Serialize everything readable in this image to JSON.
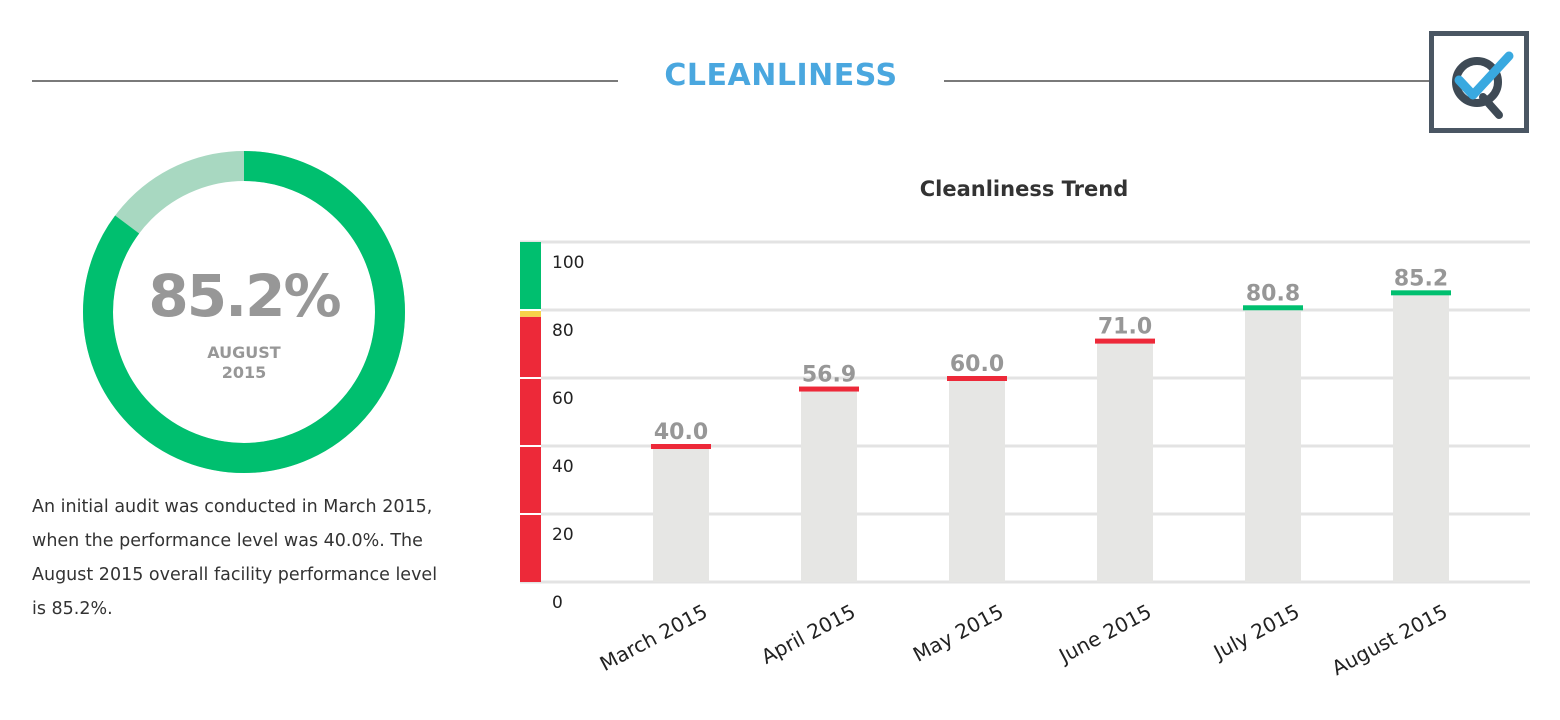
{
  "header": {
    "title": "CLEANLINESS",
    "title_color": "#4aa7df",
    "logo": "q-checkmark-logo"
  },
  "summary_gauge": {
    "value_text": "85.2%",
    "value": 85.2,
    "month": "AUGUST",
    "year": "2015",
    "fill_color": "#00bf6f",
    "track_color": "#a8d8c1"
  },
  "summary_text": "An initial audit was conducted in March 2015, when the performance level was 40.0%. The August 2015 overall facility performance level is 85.2%.",
  "chart_data": {
    "type": "bar",
    "title": "Cleanliness Trend",
    "categories": [
      "March 2015",
      "April 2015",
      "May 2015",
      "June 2015",
      "July 2015",
      "August 2015"
    ],
    "values": [
      40.0,
      56.9,
      60.0,
      71.0,
      80.8,
      85.2
    ],
    "value_labels": [
      "40.0",
      "56.9",
      "60.0",
      "71.0",
      "80.8",
      "85.2"
    ],
    "ylim": [
      0,
      100
    ],
    "yticks": [
      0,
      20,
      40,
      60,
      80,
      100
    ],
    "ytick_labels": [
      "0",
      "20",
      "40",
      "60",
      "80",
      "100"
    ],
    "grid": true,
    "bar_color": "#e6e6e4",
    "marker_colors": [
      "#ed2939",
      "#ed2939",
      "#ed2939",
      "#ed2939",
      "#00bf6f",
      "#00bf6f"
    ],
    "scale_bands": [
      {
        "from": 0,
        "to": 78,
        "color": "#ed2939"
      },
      {
        "from": 78,
        "to": 80,
        "color": "#f7d24a"
      },
      {
        "from": 80,
        "to": 100,
        "color": "#00bf6f"
      }
    ]
  }
}
